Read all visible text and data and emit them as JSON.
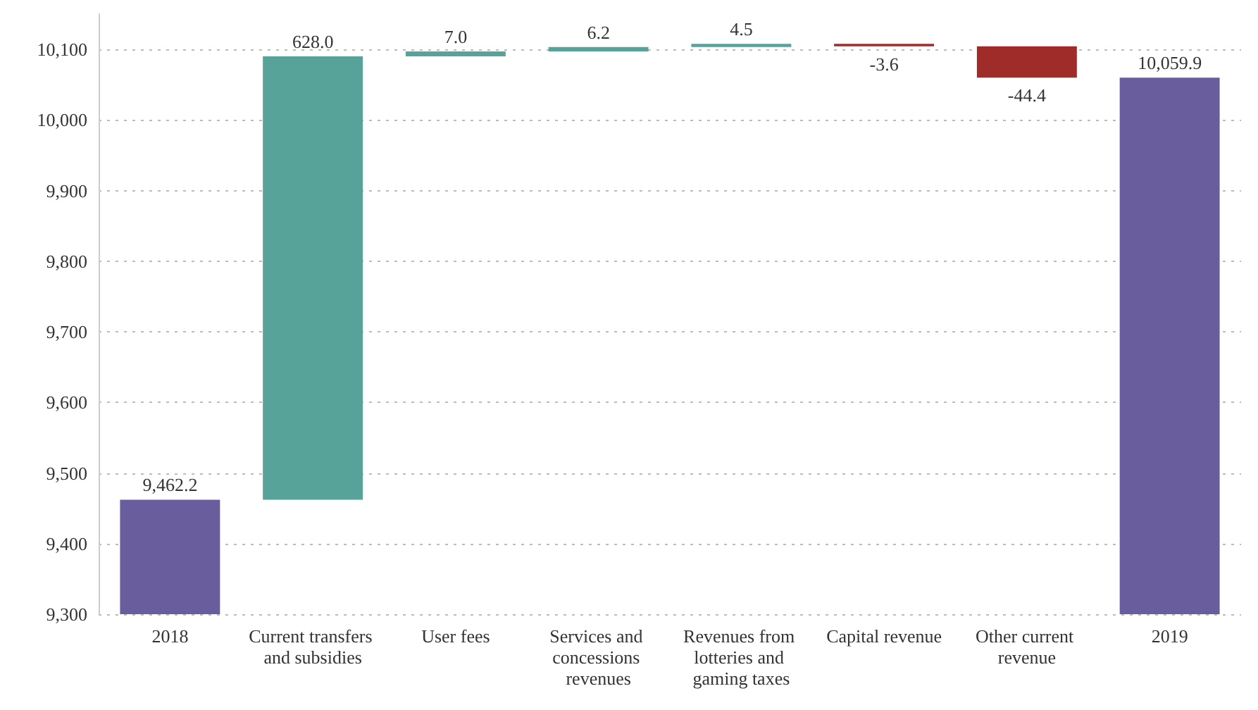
{
  "chart_data": {
    "type": "bar",
    "categories": [
      "2018",
      "Current transfers and subsidies",
      "User fees",
      "Services and concessions revenues",
      "Revenues from lotteries and gaming taxes",
      "Capital revenue",
      "Other current revenue",
      "2019"
    ],
    "values": [
      9462.2,
      628.0,
      7.0,
      6.2,
      4.5,
      -3.6,
      -44.4,
      10059.9
    ],
    "base": [
      null,
      9462.2,
      10090.2,
      10097.2,
      10103.4,
      10107.9,
      10104.3,
      null
    ],
    "colors": [
      "#6a5d9e",
      "#57a399",
      "#57a399",
      "#57a399",
      "#57a399",
      "#a02c2a",
      "#a02c2a",
      "#6a5d9e"
    ],
    "value_labels": [
      "9,462.2",
      "628.0",
      "7.0",
      "6.2",
      "4.5",
      "-3.6",
      "-44.4",
      "10,059.9"
    ],
    "ylim": [
      9300,
      10150
    ],
    "yticks": [
      {
        "value": 9300,
        "label": "9,300"
      },
      {
        "value": 9400,
        "label": "9,400"
      },
      {
        "value": 9500,
        "label": "9,500"
      },
      {
        "value": 9600,
        "label": "9,600"
      },
      {
        "value": 9700,
        "label": "9,700"
      },
      {
        "value": 9800,
        "label": "9,800"
      },
      {
        "value": 9900,
        "label": "9,900"
      },
      {
        "value": 10000,
        "label": "10,000"
      },
      {
        "value": 10100,
        "label": "10,100"
      }
    ],
    "grid": "y"
  }
}
